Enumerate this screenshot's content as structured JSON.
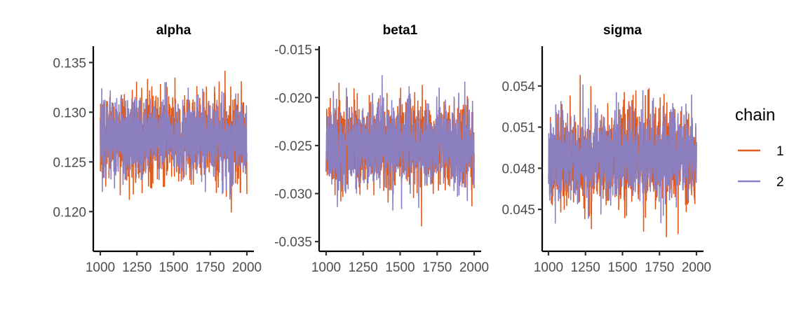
{
  "chart_data": [
    {
      "type": "line",
      "title": "alpha",
      "x_range": [
        1000,
        2000
      ],
      "ylim": [
        0.1165,
        0.1365
      ],
      "x_ticks": [
        1000,
        1250,
        1500,
        1750,
        2000
      ],
      "x_tick_labels": [
        "1000",
        "1250",
        "1500",
        "1750",
        "2000"
      ],
      "y_ticks": [
        0.12,
        0.125,
        0.13,
        0.135
      ],
      "y_tick_labels": [
        "0.120",
        "0.125",
        "0.130",
        "0.135"
      ],
      "series": [
        {
          "name": "1",
          "mean": 0.1275,
          "sd": 0.0021,
          "min": 0.117,
          "max": 0.1355
        },
        {
          "name": "2",
          "mean": 0.1275,
          "sd": 0.002,
          "min": 0.12,
          "max": 0.1358
        }
      ]
    },
    {
      "type": "line",
      "title": "beta1",
      "x_range": [
        1000,
        2000
      ],
      "ylim": [
        -0.0355,
        -0.0148
      ],
      "x_ticks": [
        1000,
        1250,
        1500,
        1750,
        2000
      ],
      "x_tick_labels": [
        "1000",
        "1250",
        "1500",
        "1750",
        "2000"
      ],
      "y_ticks": [
        -0.035,
        -0.03,
        -0.025,
        -0.02,
        -0.015
      ],
      "y_tick_labels": [
        "-0.035",
        "-0.030",
        "-0.025",
        "-0.020",
        "-0.015"
      ],
      "series": [
        {
          "name": "1",
          "mean": -0.025,
          "sd": 0.0022,
          "min": -0.0345,
          "max": -0.016
        },
        {
          "name": "2",
          "mean": -0.025,
          "sd": 0.0021,
          "min": -0.035,
          "max": -0.017
        }
      ]
    },
    {
      "type": "line",
      "title": "sigma",
      "x_range": [
        1000,
        2000
      ],
      "ylim": [
        0.0423,
        0.0568
      ],
      "x_ticks": [
        1000,
        1250,
        1500,
        1750,
        2000
      ],
      "x_tick_labels": [
        "1000",
        "1250",
        "1500",
        "1750",
        "2000"
      ],
      "y_ticks": [
        0.045,
        0.048,
        0.051,
        0.054
      ],
      "y_tick_labels": [
        "0.045",
        "0.048",
        "0.051",
        "0.054"
      ],
      "series": [
        {
          "name": "1",
          "mean": 0.0488,
          "sd": 0.0017,
          "min": 0.043,
          "max": 0.0563
        },
        {
          "name": "2",
          "mean": 0.0488,
          "sd": 0.0016,
          "min": 0.044,
          "max": 0.055
        }
      ]
    }
  ],
  "legend": {
    "title": "chain",
    "placement": "right",
    "entries": [
      {
        "label": "1",
        "color": "#E05A1B"
      },
      {
        "label": "2",
        "color": "#8B7FBF"
      }
    ]
  },
  "colors": {
    "chain1": "#E05A1B",
    "chain2": "#8B7FBF",
    "axis": "#000000"
  }
}
